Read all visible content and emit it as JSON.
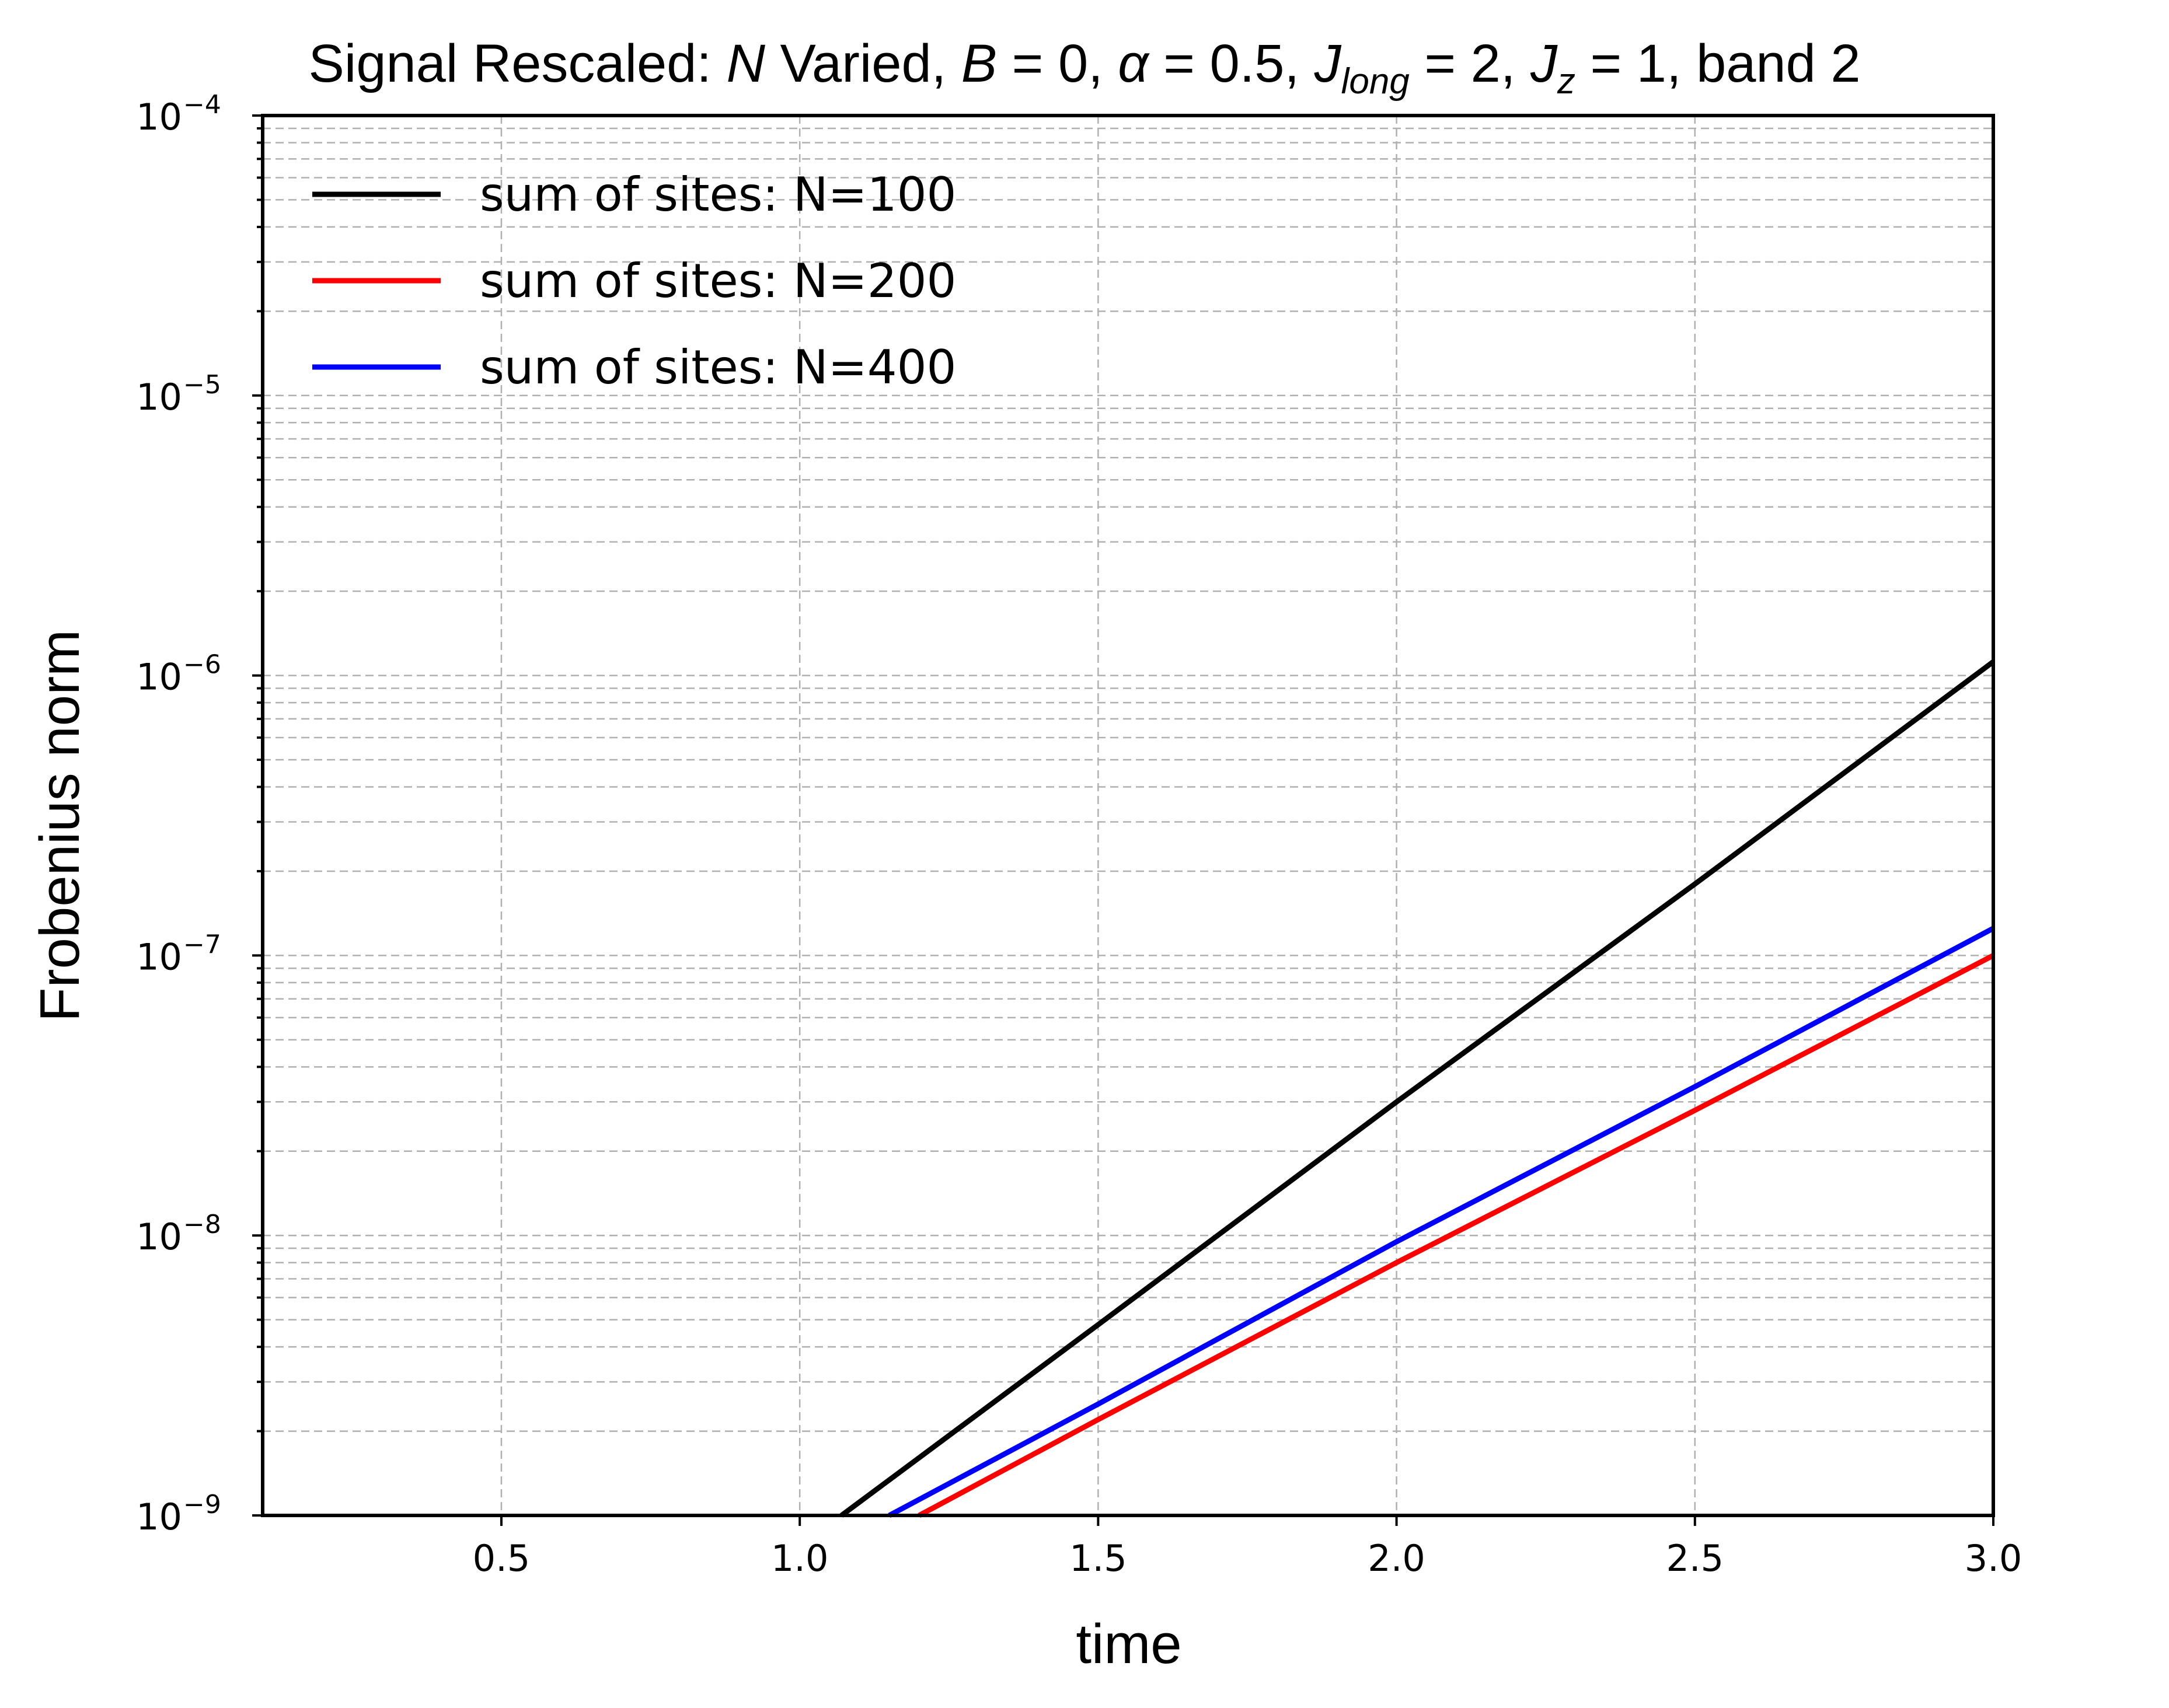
{
  "chart_data": {
    "type": "line",
    "title": {
      "prefix": "Signal Rescaled: ",
      "N": "N",
      "varied": " Varied, ",
      "B": "B",
      "eq_B": " = 0, ",
      "alpha": "α",
      "eq_alpha": " = 0.5, ",
      "J": "J",
      "long_sub": "long",
      "eq_long": " = 2, ",
      "Jz": "J",
      "z_sub": "z",
      "eq_z": " = 1, ",
      "suffix": "band 2"
    },
    "xlabel": "time",
    "ylabel": "Frobenius norm",
    "xlim": [
      0.1,
      3.0
    ],
    "ylim": [
      1e-09,
      0.0001
    ],
    "yscale": "log",
    "grid": true,
    "legend_position": "upper-left",
    "x_ticks": [
      0.5,
      1.0,
      1.5,
      2.0,
      2.5,
      3.0
    ],
    "x_tick_labels": [
      "0.5",
      "1.0",
      "1.5",
      "2.0",
      "2.5",
      "3.0"
    ],
    "y_ticks": [
      {
        "value": 1e-09,
        "base": "10",
        "exp": "−9"
      },
      {
        "value": 1e-08,
        "base": "10",
        "exp": "−8"
      },
      {
        "value": 1e-07,
        "base": "10",
        "exp": "−7"
      },
      {
        "value": 1e-06,
        "base": "10",
        "exp": "−6"
      },
      {
        "value": 1e-05,
        "base": "10",
        "exp": "−5"
      },
      {
        "value": 0.0001,
        "base": "10",
        "exp": "−4"
      }
    ],
    "series": [
      {
        "name": "sum of sites: N=100",
        "color": "#000000",
        "x": [
          1.07,
          1.5,
          2.0,
          2.5,
          3.0
        ],
        "y": [
          1e-09,
          4.8e-09,
          3e-08,
          1.8e-07,
          1.12e-06
        ]
      },
      {
        "name": "sum of sites: N=200",
        "color": "#ff0000",
        "x": [
          1.2,
          1.5,
          2.0,
          2.5,
          3.0
        ],
        "y": [
          1e-09,
          2.2e-09,
          8e-09,
          2.8e-08,
          1e-07
        ]
      },
      {
        "name": "sum of sites: N=400",
        "color": "#0000ff",
        "x": [
          1.15,
          1.5,
          2.0,
          2.5,
          3.0
        ],
        "y": [
          1e-09,
          2.5e-09,
          9.5e-09,
          3.4e-08,
          1.25e-07
        ]
      }
    ]
  }
}
